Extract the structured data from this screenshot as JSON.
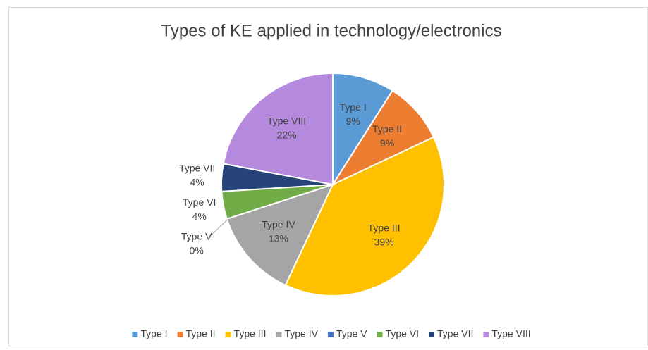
{
  "chart_data": {
    "type": "pie",
    "title": "Types of KE applied in technology/electronics",
    "categories": [
      "Type I",
      "Type II",
      "Type III",
      "Type IV",
      "Type V",
      "Type VI",
      "Type VII",
      "Type VIII"
    ],
    "values": [
      9,
      9,
      39,
      13,
      0,
      4,
      4,
      22
    ],
    "value_labels": [
      "9%",
      "9%",
      "39%",
      "13%",
      "0%",
      "4%",
      "4%",
      "22%"
    ],
    "colors": [
      "#5b9bd5",
      "#ed7d31",
      "#ffc000",
      "#a5a5a5",
      "#4472c4",
      "#70ad47",
      "#264478",
      "#b589dd"
    ],
    "legend": "bottom"
  }
}
